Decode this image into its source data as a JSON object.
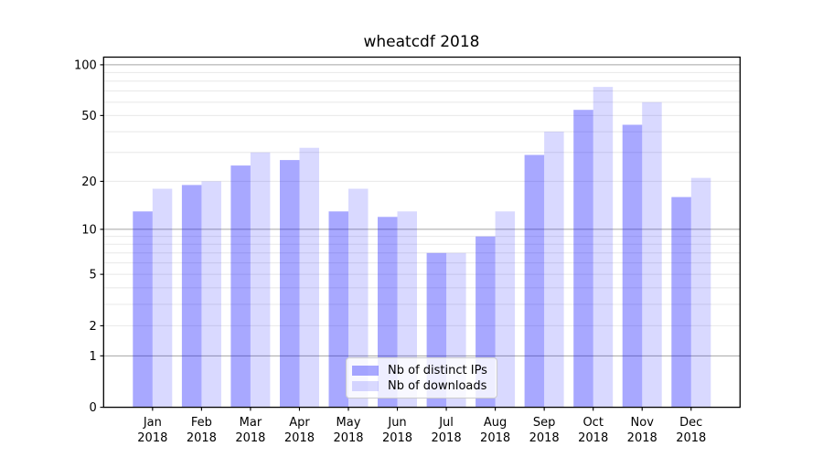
{
  "chart_data": {
    "type": "bar",
    "title": "wheatcdf 2018",
    "categories": [
      "Jan 2018",
      "Feb 2018",
      "Mar 2018",
      "Apr 2018",
      "May 2018",
      "Jun 2018",
      "Jul 2018",
      "Aug 2018",
      "Sep 2018",
      "Oct 2018",
      "Nov 2018",
      "Dec 2018"
    ],
    "series": [
      {
        "name": "Nb of distinct IPs",
        "color": "#0000ff",
        "alpha": 0.34,
        "appears_as": "#a8a8f8",
        "values": [
          13,
          19,
          25,
          27,
          13,
          12,
          7,
          9,
          29,
          54,
          44,
          16
        ]
      },
      {
        "name": "Nb of downloads",
        "color": "#0000ff",
        "alpha": 0.15,
        "appears_as": "#d9d9f9",
        "values": [
          18,
          20,
          30,
          32,
          18,
          13,
          7,
          13,
          40,
          74,
          60,
          21
        ]
      }
    ],
    "xlabel": "",
    "ylabel": "",
    "yscale": "log1p",
    "ylim": [
      0,
      111
    ],
    "yticks": [
      0,
      1,
      2,
      5,
      10,
      20,
      50,
      100
    ],
    "grid": {
      "major_ticks": [
        1,
        10,
        100
      ],
      "major_color": "#a5a5a5",
      "minor_ticks": [
        2,
        3,
        4,
        5,
        6,
        7,
        8,
        9,
        20,
        30,
        40,
        50,
        60,
        70,
        80,
        90
      ],
      "minor_color": "#e8e8e8"
    },
    "legend": {
      "position": "lower center",
      "edge_color": "#cccccc",
      "face_color": "#ffffff"
    },
    "axis_color": "#000000"
  }
}
